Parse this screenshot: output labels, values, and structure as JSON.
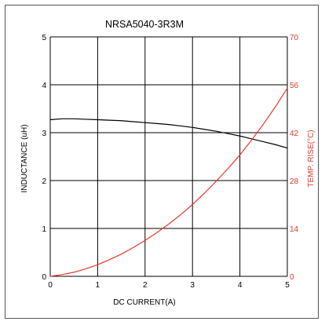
{
  "chart_data": {
    "type": "line",
    "title": "NRSA5040-3R3M",
    "xlabel": "DC CURRENT(A)",
    "ylabel": "INDUCTANCE (uH)",
    "y2label": "TEMP. RISE(°C)",
    "xlim": [
      0,
      5
    ],
    "ylim": [
      0,
      5
    ],
    "y2lim": [
      0,
      70
    ],
    "xticks": [
      "0",
      "1",
      "2",
      "3",
      "4",
      "5"
    ],
    "yticks": [
      "0",
      "1",
      "2",
      "3",
      "4",
      "5"
    ],
    "y2ticks": [
      "0",
      "14",
      "28",
      "42",
      "56",
      "70"
    ],
    "grid": true,
    "series": [
      {
        "axis": "left",
        "color": "#000000",
        "x": [
          0,
          0.25,
          0.5,
          0.75,
          1.0,
          1.25,
          1.5,
          1.75,
          2.0,
          2.25,
          2.5,
          2.75,
          3.0,
          3.25,
          3.5,
          3.75,
          4.0,
          4.25,
          4.5,
          4.75,
          5.0
        ],
        "values": [
          3.27,
          3.29,
          3.29,
          3.28,
          3.27,
          3.26,
          3.25,
          3.23,
          3.21,
          3.19,
          3.17,
          3.14,
          3.11,
          3.07,
          3.03,
          2.98,
          2.93,
          2.87,
          2.81,
          2.75,
          2.68
        ]
      },
      {
        "axis": "right",
        "color": "#e8372e",
        "x": [
          0,
          0.25,
          0.5,
          0.75,
          1.0,
          1.25,
          1.5,
          1.75,
          2.0,
          2.25,
          2.5,
          2.75,
          3.0,
          3.25,
          3.5,
          3.75,
          4.0,
          4.25,
          4.5,
          4.75,
          5.0
        ],
        "values": [
          0,
          0.5,
          1.2,
          2.2,
          3.4,
          4.9,
          6.5,
          8.4,
          10.5,
          12.8,
          15.3,
          18.0,
          21.0,
          24.3,
          27.8,
          31.5,
          35.5,
          39.9,
          44.6,
          49.6,
          55.0
        ]
      }
    ]
  }
}
